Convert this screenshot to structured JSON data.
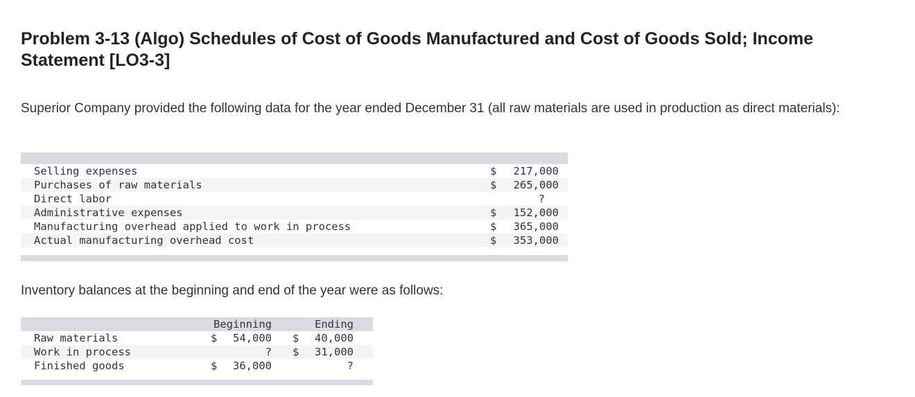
{
  "problem": {
    "title": "Problem 3-13 (Algo) Schedules of Cost of Goods Manufactured and Cost of Goods Sold; Income Statement [LO3-3]",
    "intro": "Superior Company provided the following data for the year ended December 31 (all raw materials are used in production as direct materials):",
    "inventory_intro": "Inventory balances at the beginning and end of the year were as follows:"
  },
  "data_table": {
    "rows": [
      {
        "label": "Selling expenses",
        "currency": "$",
        "amount": "217,000"
      },
      {
        "label": "Purchases of raw materials",
        "currency": "$",
        "amount": "265,000"
      },
      {
        "label": "Direct labor",
        "currency": "",
        "amount": "?"
      },
      {
        "label": "Administrative expenses",
        "currency": "$",
        "amount": "152,000"
      },
      {
        "label": "Manufacturing overhead applied to work in process",
        "currency": "$",
        "amount": "365,000"
      },
      {
        "label": "Actual manufacturing overhead cost",
        "currency": "$",
        "amount": "353,000"
      }
    ]
  },
  "inventory_table": {
    "headers": {
      "beginning": "Beginning",
      "ending": "Ending"
    },
    "rows": [
      {
        "label": "Raw materials",
        "beg_currency": "$",
        "beginning": "54,000",
        "end_currency": "$",
        "ending": "40,000"
      },
      {
        "label": "Work in process",
        "beg_currency": "",
        "beginning": "?",
        "end_currency": "$",
        "ending": "31,000"
      },
      {
        "label": "Finished goods",
        "beg_currency": "$",
        "beginning": "36,000",
        "end_currency": "",
        "ending": "?"
      }
    ]
  }
}
